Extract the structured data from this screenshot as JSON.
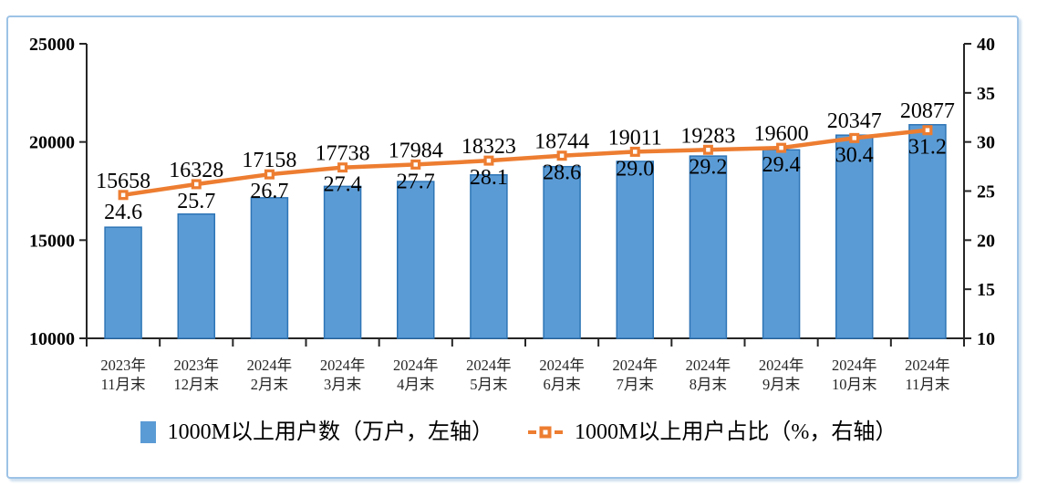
{
  "frame": {
    "border_color": "#9DC3E6",
    "background": "#FFFFFF"
  },
  "chart_data": {
    "type": "combo",
    "title": "",
    "grid": false,
    "legend_position": "bottom",
    "categories": [
      "2023年11月末",
      "2023年12月末",
      "2024年2月末",
      "2024年3月末",
      "2024年4月末",
      "2024年5月末",
      "2024年6月末",
      "2024年7月末",
      "2024年8月末",
      "2024年9月末",
      "2024年10月末",
      "2024年11月末"
    ],
    "category_lines": [
      [
        "2023年",
        "11月末"
      ],
      [
        "2023年",
        "12月末"
      ],
      [
        "2024年",
        "2月末"
      ],
      [
        "2024年",
        "3月末"
      ],
      [
        "2024年",
        "4月末"
      ],
      [
        "2024年",
        "5月末"
      ],
      [
        "2024年",
        "6月末"
      ],
      [
        "2024年",
        "7月末"
      ],
      [
        "2024年",
        "8月末"
      ],
      [
        "2024年",
        "9月末"
      ],
      [
        "2024年",
        "10月末"
      ],
      [
        "2024年",
        "11月末"
      ]
    ],
    "series": [
      {
        "name": "1000M以上用户数（万户，左轴）",
        "type": "bar",
        "axis": "left",
        "values": [
          15658,
          16328,
          17158,
          17738,
          17984,
          18323,
          18744,
          19011,
          19283,
          19600,
          20347,
          20877
        ],
        "labels": [
          "15658",
          "16328",
          "17158",
          "17738",
          "17984",
          "18323",
          "18744",
          "19011",
          "19283",
          "19600",
          "20347",
          "20877"
        ],
        "color": "#5B9BD5",
        "border_color": "#2E75B6"
      },
      {
        "name": "1000M以上用户占比（%，右轴）",
        "type": "line",
        "axis": "right",
        "values": [
          24.6,
          25.7,
          26.7,
          27.4,
          27.7,
          28.1,
          28.6,
          29.0,
          29.2,
          29.4,
          30.4,
          31.2
        ],
        "labels": [
          "24.6",
          "25.7",
          "26.7",
          "27.4",
          "27.7",
          "28.1",
          "28.6",
          "29.0",
          "29.2",
          "29.4",
          "30.4",
          "31.2"
        ],
        "color": "#ED7D31",
        "marker": "square-white-center"
      }
    ],
    "left_axis": {
      "min": 10000,
      "max": 25000,
      "step": 5000,
      "tick_labels": [
        "10000",
        "15000",
        "20000",
        "25000"
      ]
    },
    "right_axis": {
      "min": 10,
      "max": 40,
      "step": 5,
      "tick_labels": [
        "10",
        "15",
        "20",
        "25",
        "30",
        "35",
        "40"
      ]
    },
    "axis_color": "#262626",
    "text_color": "#000000"
  }
}
